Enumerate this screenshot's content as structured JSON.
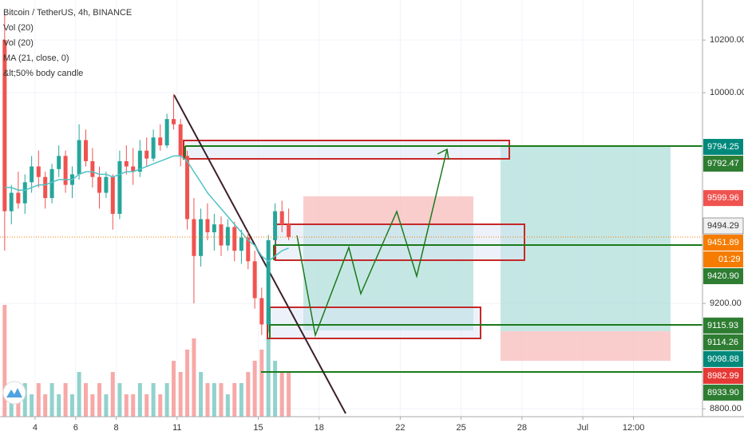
{
  "chart_data": {
    "type": "candlestick",
    "title": "Bitcoin / TetherUS, 4h, BINANCE",
    "legend": [
      "Vol (20)",
      "Vol (20)",
      "MA (21, close, 0)",
      "&lt;50% body candle"
    ],
    "up_color": "#26a69a",
    "down_color": "#ef5350",
    "ma_color": "#4fc3c7",
    "grid": true,
    "xlim": [
      2.27,
      36.9
    ],
    "ylim": [
      8770,
      10352
    ],
    "xticks": [
      4,
      8,
      11,
      15,
      18,
      22,
      25,
      28,
      {
        "value": 31,
        "label": "Jul"
      },
      {
        "value": 33.5,
        "label": "12:00"
      },
      6.0
    ],
    "yticks": [
      {
        "value": 8800,
        "label": "8800.00"
      },
      {
        "value": 9200,
        "label": "9200.00"
      },
      {
        "value": 10000,
        "label": "10000.00"
      },
      {
        "value": 10200,
        "label": "10200.00"
      }
    ],
    "x": [
      2.5,
      2.83,
      3.17,
      3.5,
      3.83,
      4.17,
      4.5,
      4.83,
      5.17,
      5.5,
      5.83,
      6.17,
      6.5,
      6.83,
      7.17,
      7.5,
      7.83,
      8.17,
      8.5,
      8.83,
      9.17,
      9.5,
      9.83,
      10.17,
      10.5,
      10.83,
      11.17,
      11.5,
      11.83,
      12.17,
      12.5,
      12.83,
      13.17,
      13.5,
      13.83,
      14.17,
      14.5,
      14.83,
      15.17,
      15.5,
      15.83,
      16.17,
      16.5
    ],
    "ohlc": [
      [
        10200,
        10300,
        9400,
        9550
      ],
      [
        9550,
        9650,
        9500,
        9620
      ],
      [
        9620,
        9700,
        9560,
        9580
      ],
      [
        9580,
        9690,
        9540,
        9660
      ],
      [
        9660,
        9760,
        9620,
        9720
      ],
      [
        9720,
        9780,
        9640,
        9680
      ],
      [
        9680,
        9700,
        9560,
        9600
      ],
      [
        9600,
        9730,
        9580,
        9710
      ],
      [
        9710,
        9800,
        9680,
        9760
      ],
      [
        9760,
        9780,
        9620,
        9650
      ],
      [
        9650,
        9720,
        9600,
        9690
      ],
      [
        9690,
        9880,
        9670,
        9820
      ],
      [
        9820,
        9860,
        9720,
        9740
      ],
      [
        9740,
        9790,
        9640,
        9680
      ],
      [
        9680,
        9720,
        9560,
        9620
      ],
      [
        9620,
        9700,
        9600,
        9680
      ],
      [
        9680,
        9690,
        9480,
        9540
      ],
      [
        9540,
        9780,
        9520,
        9740
      ],
      [
        9740,
        9800,
        9690,
        9720
      ],
      [
        9720,
        9790,
        9650,
        9700
      ],
      [
        9700,
        9820,
        9680,
        9780
      ],
      [
        9780,
        9830,
        9720,
        9750
      ],
      [
        9750,
        9860,
        9740,
        9830
      ],
      [
        9830,
        9880,
        9780,
        9800
      ],
      [
        9800,
        9920,
        9790,
        9900
      ],
      [
        9900,
        9995,
        9860,
        9880
      ],
      [
        9880,
        9900,
        9720,
        9760
      ],
      [
        9760,
        9780,
        9480,
        9520
      ],
      [
        9520,
        9600,
        9200,
        9380
      ],
      [
        9380,
        9560,
        9340,
        9520
      ],
      [
        9520,
        9580,
        9440,
        9470
      ],
      [
        9470,
        9540,
        9400,
        9500
      ],
      [
        9500,
        9530,
        9380,
        9420
      ],
      [
        9420,
        9520,
        9400,
        9490
      ],
      [
        9490,
        9510,
        9360,
        9400
      ],
      [
        9400,
        9480,
        9350,
        9450
      ],
      [
        9450,
        9470,
        9330,
        9360
      ],
      [
        9360,
        9400,
        9180,
        9220
      ],
      [
        9220,
        9260,
        9080,
        9120
      ],
      [
        9120,
        9460,
        9090,
        9440
      ],
      [
        9440,
        9580,
        9420,
        9550
      ],
      [
        9550,
        9590,
        9470,
        9500
      ],
      [
        9500,
        9560,
        9440,
        9451.89
      ]
    ],
    "volume": [
      10,
      3,
      2,
      3,
      2,
      3,
      2,
      3,
      2,
      3,
      2,
      4,
      3,
      2,
      3,
      2,
      4,
      3,
      2,
      2,
      3,
      2,
      3,
      2,
      3,
      5,
      4,
      6,
      7,
      4,
      3,
      3,
      3,
      2,
      3,
      3,
      4,
      5,
      6,
      7,
      5,
      4,
      4
    ],
    "ma": {
      "values": [
        9640,
        9640,
        9630,
        9630,
        9640,
        9650,
        9650,
        9660,
        9670,
        9670,
        9670,
        9690,
        9700,
        9700,
        9690,
        9690,
        9680,
        9690,
        9700,
        9700,
        9710,
        9720,
        9730,
        9740,
        9750,
        9760,
        9760,
        9740,
        9700,
        9660,
        9620,
        9590,
        9560,
        9530,
        9500,
        9470,
        9440,
        9420,
        9380,
        9360,
        9380,
        9400,
        9410
      ]
    },
    "price_labels": [
      {
        "value": 9794.25,
        "color": "#00897b"
      },
      {
        "value": 9792.47,
        "color": "#2e7d32"
      },
      {
        "value": 9599.96,
        "color": "#ef5350"
      },
      {
        "value": 9494.29,
        "color": "#f0f0f0"
      },
      {
        "value": 9451.89,
        "color": "#f57c00",
        "countdown": "01:29"
      },
      {
        "value": 9420.9,
        "label": "9420.90",
        "color": "#2e7d32"
      },
      {
        "value": 9115.93,
        "color": "#2e7d32"
      },
      {
        "value": 9114.26,
        "color": "#2e7d32"
      },
      {
        "value": 9098.88,
        "color": "#00897b"
      },
      {
        "value": 8982.99,
        "color": "#e53935"
      },
      {
        "value": 8933.9,
        "label": "8933.90",
        "color": "#2e7d32"
      }
    ]
  }
}
